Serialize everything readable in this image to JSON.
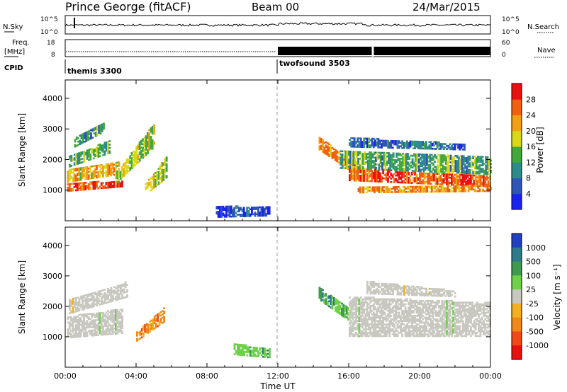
{
  "header": {
    "station": "Prince George (fitACF)",
    "beam": "Beam 00",
    "date": "24/Mar/2015"
  },
  "top_panels": {
    "nsky_label": "N.Sky",
    "nsky_ticks": [
      "10^5",
      "10^0"
    ],
    "nsearch_label": "N.Search",
    "freq_label": "Freq.",
    "freq_unit": "[MHz]",
    "freq_ticks": [
      "18",
      "8"
    ],
    "nave_label": "Nave",
    "nave_ticks": [
      "60",
      "0"
    ],
    "cpid_label": "CPID",
    "cpid_segments": [
      {
        "name": "themis 3300",
        "start_hour": 0
      },
      {
        "name": "twofsound 3503",
        "start_hour": 12
      }
    ]
  },
  "chart_data": [
    {
      "type": "heatmap",
      "id": "power",
      "xlabel": "",
      "ylabel": "Slant Range [km]",
      "xlim": [
        0,
        24
      ],
      "ylim": [
        0,
        4600
      ],
      "y_ticks": [
        1000,
        2000,
        3000,
        4000
      ],
      "colorbar_label": "Power [dB]",
      "colorbar_ticks": [
        4,
        8,
        12,
        16,
        20,
        24,
        28
      ],
      "colorbar_range": [
        0,
        32
      ],
      "colorbar_colors": [
        "#1a22ee",
        "#2f55b6",
        "#2f8a8a",
        "#43a83c",
        "#d8d818",
        "#f0a010",
        "#f06010",
        "#e81010"
      ],
      "echo_bands": [
        {
          "t0": 0.1,
          "t1": 3.2,
          "r0": 950,
          "r1": 1200,
          "r0_end": 1100,
          "r1_end": 1300,
          "level": 0.9
        },
        {
          "t0": 0.1,
          "t1": 3.0,
          "r0": 1250,
          "r1": 1650,
          "r0_end": 1500,
          "r1_end": 1900,
          "level": 0.65
        },
        {
          "t0": 0.2,
          "t1": 2.5,
          "r0": 1750,
          "r1": 2100,
          "r0_end": 2200,
          "r1_end": 2600,
          "level": 0.45
        },
        {
          "t0": 0.5,
          "t1": 2.2,
          "r0": 2400,
          "r1": 2700,
          "r0_end": 2900,
          "r1_end": 3200,
          "level": 0.35
        },
        {
          "t0": 2.8,
          "t1": 5.0,
          "r0": 1200,
          "r1": 1500,
          "r0_end": 2400,
          "r1_end": 3200,
          "level": 0.55
        },
        {
          "t0": 4.5,
          "t1": 5.7,
          "r0": 850,
          "r1": 1200,
          "r0_end": 1400,
          "r1_end": 2100,
          "level": 0.55
        },
        {
          "t0": 14.3,
          "t1": 16.5,
          "r0": 2300,
          "r1": 2700,
          "r0_end": 1450,
          "r1_end": 1800,
          "level": 0.75
        },
        {
          "t0": 16.0,
          "t1": 24.0,
          "r0": 1300,
          "r1": 1700,
          "r0_end": 1100,
          "r1_end": 1450,
          "level": 0.85
        },
        {
          "t0": 15.5,
          "t1": 24.0,
          "r0": 1700,
          "r1": 2300,
          "r0_end": 1500,
          "r1_end": 2100,
          "level": 0.4
        },
        {
          "t0": 16.0,
          "t1": 22.5,
          "r0": 2400,
          "r1": 2700,
          "r0_end": 2300,
          "r1_end": 2500,
          "level": 0.25
        },
        {
          "t0": 16.5,
          "t1": 24.0,
          "r0": 900,
          "r1": 1100,
          "r0_end": 950,
          "r1_end": 1150,
          "level": 0.7
        },
        {
          "t0": 8.5,
          "t1": 11.5,
          "r0": 100,
          "r1": 450,
          "r0_end": 150,
          "r1_end": 450,
          "level": 0.15
        }
      ]
    },
    {
      "type": "heatmap",
      "id": "velocity",
      "xlabel": "Time UT",
      "ylabel": "Slant Range [km]",
      "xlim": [
        0,
        24
      ],
      "ylim": [
        0,
        4600
      ],
      "y_ticks": [
        1000,
        2000,
        3000,
        4000
      ],
      "x_ticks": [
        "00:00",
        "04:00",
        "08:00",
        "12:00",
        "16:00",
        "20:00",
        "00:00"
      ],
      "colorbar_label": "Velocity [m s⁻¹]",
      "colorbar_ticks": [
        "1000",
        "500",
        "100",
        "25",
        "-25",
        "-100",
        "-500",
        "-1000"
      ],
      "colorbar_colors": [
        "#2040c0",
        "#2f7a8a",
        "#3f9a50",
        "#6fd04a",
        "#c8c8c0",
        "#f0b020",
        "#f08818",
        "#f04818",
        "#e81010"
      ],
      "echo_bands": [
        {
          "t0": 0.1,
          "t1": 3.2,
          "r0": 950,
          "r1": 1650,
          "r0_end": 1100,
          "r1_end": 1900,
          "cls": "ground"
        },
        {
          "t0": 0.2,
          "t1": 3.5,
          "r0": 1750,
          "r1": 2200,
          "r0_end": 2300,
          "r1_end": 2800,
          "cls": "ground"
        },
        {
          "t0": 4.0,
          "t1": 5.6,
          "r0": 850,
          "r1": 1150,
          "r0_end": 1500,
          "r1_end": 1950,
          "cls": "away"
        },
        {
          "t0": 14.3,
          "t1": 16.0,
          "r0": 2200,
          "r1": 2600,
          "r0_end": 1500,
          "r1_end": 1900,
          "cls": "toward"
        },
        {
          "t0": 16.0,
          "t1": 24.0,
          "r0": 1000,
          "r1": 2300,
          "r0_end": 1000,
          "r1_end": 2100,
          "cls": "ground"
        },
        {
          "t0": 17.0,
          "t1": 22.0,
          "r0": 2400,
          "r1": 2800,
          "r0_end": 2300,
          "r1_end": 2500,
          "cls": "ground"
        },
        {
          "t0": 9.5,
          "t1": 11.5,
          "r0": 400,
          "r1": 750,
          "r0_end": 300,
          "r1_end": 600,
          "cls": "toward"
        }
      ]
    }
  ]
}
